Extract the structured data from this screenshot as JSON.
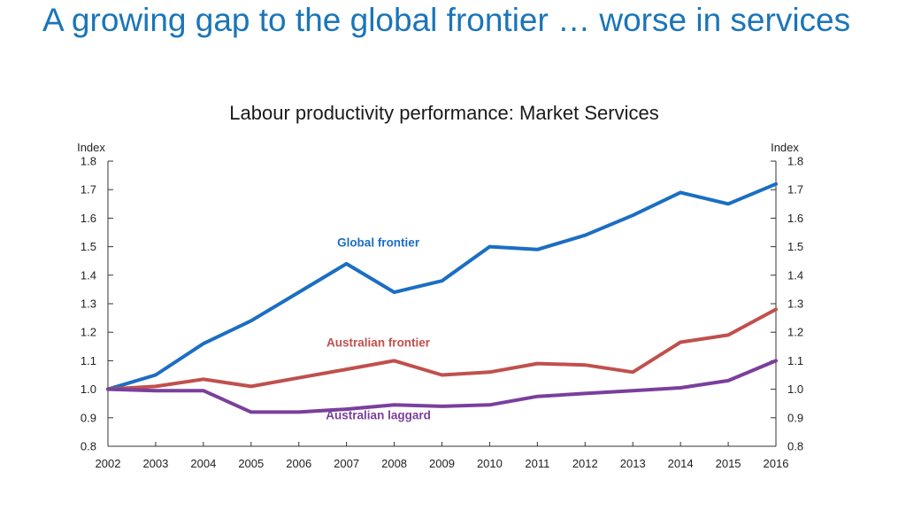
{
  "slide": {
    "title": "A growing gap to the global frontier … worse in services"
  },
  "chart_data": {
    "type": "line",
    "title": "Labour productivity performance: Market Services",
    "left_axis_unit": "Index",
    "right_axis_unit": "Index",
    "xlabel": "",
    "ylabel": "",
    "ylim": [
      0.8,
      1.8
    ],
    "y_ticks": [
      "0.8",
      "0.9",
      "1.0",
      "1.1",
      "1.2",
      "1.3",
      "1.4",
      "1.5",
      "1.6",
      "1.7",
      "1.8"
    ],
    "grid": false,
    "categories": [
      "2002",
      "2003",
      "2004",
      "2005",
      "2006",
      "2007",
      "2008",
      "2009",
      "2010",
      "2011",
      "2012",
      "2013",
      "2014",
      "2015",
      "2016"
    ],
    "series": [
      {
        "name": "Global frontier",
        "color": "#1b6ec2",
        "values": [
          1.0,
          1.05,
          1.16,
          1.24,
          1.34,
          1.44,
          1.34,
          1.38,
          1.5,
          1.49,
          1.54,
          1.61,
          1.69,
          1.65,
          1.72
        ]
      },
      {
        "name": "Australian frontier",
        "color": "#c0504d",
        "values": [
          1.0,
          1.01,
          1.035,
          1.01,
          1.04,
          1.07,
          1.1,
          1.05,
          1.06,
          1.09,
          1.085,
          1.06,
          1.165,
          1.19,
          1.28
        ]
      },
      {
        "name": "Australian laggard",
        "color": "#7a3f9d",
        "values": [
          1.0,
          0.995,
          0.995,
          0.92,
          0.92,
          0.93,
          0.945,
          0.94,
          0.945,
          0.975,
          0.985,
          0.995,
          1.005,
          1.03,
          1.1
        ]
      }
    ]
  }
}
